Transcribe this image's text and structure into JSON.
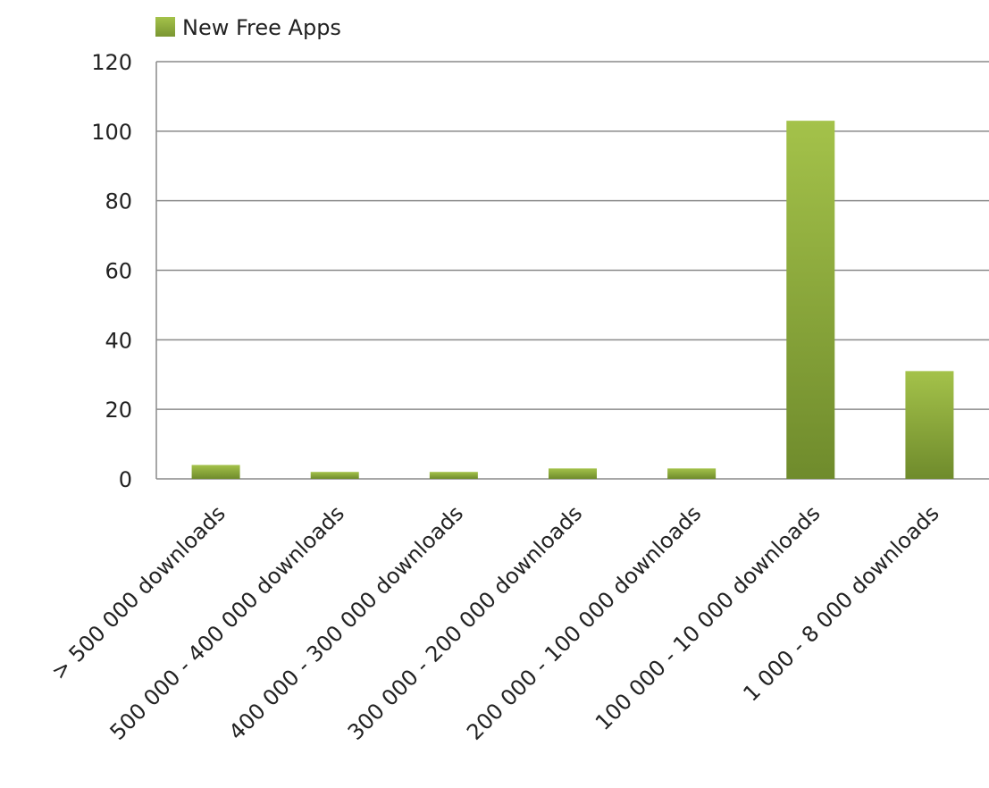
{
  "chart_data": {
    "type": "bar",
    "title": "",
    "xlabel": "",
    "ylabel": "",
    "categories": [
      "> 500 000 downloads",
      "500 000 - 400 000 downloads",
      "400 000 - 300 000 downloads",
      "300 000 - 200 000 downloads",
      "200 000 - 100 000 downloads",
      "100 000 - 10 000 downloads",
      "1 000 - 8 000 downloads"
    ],
    "series": [
      {
        "name": "New Free Apps",
        "values": [
          4,
          2,
          2,
          3,
          3,
          103,
          31
        ],
        "color": "#8fb03a"
      }
    ],
    "ylim": [
      0,
      120
    ],
    "yticks": [
      0,
      20,
      40,
      60,
      80,
      100,
      120
    ],
    "grid": true,
    "legend": "top-left"
  }
}
